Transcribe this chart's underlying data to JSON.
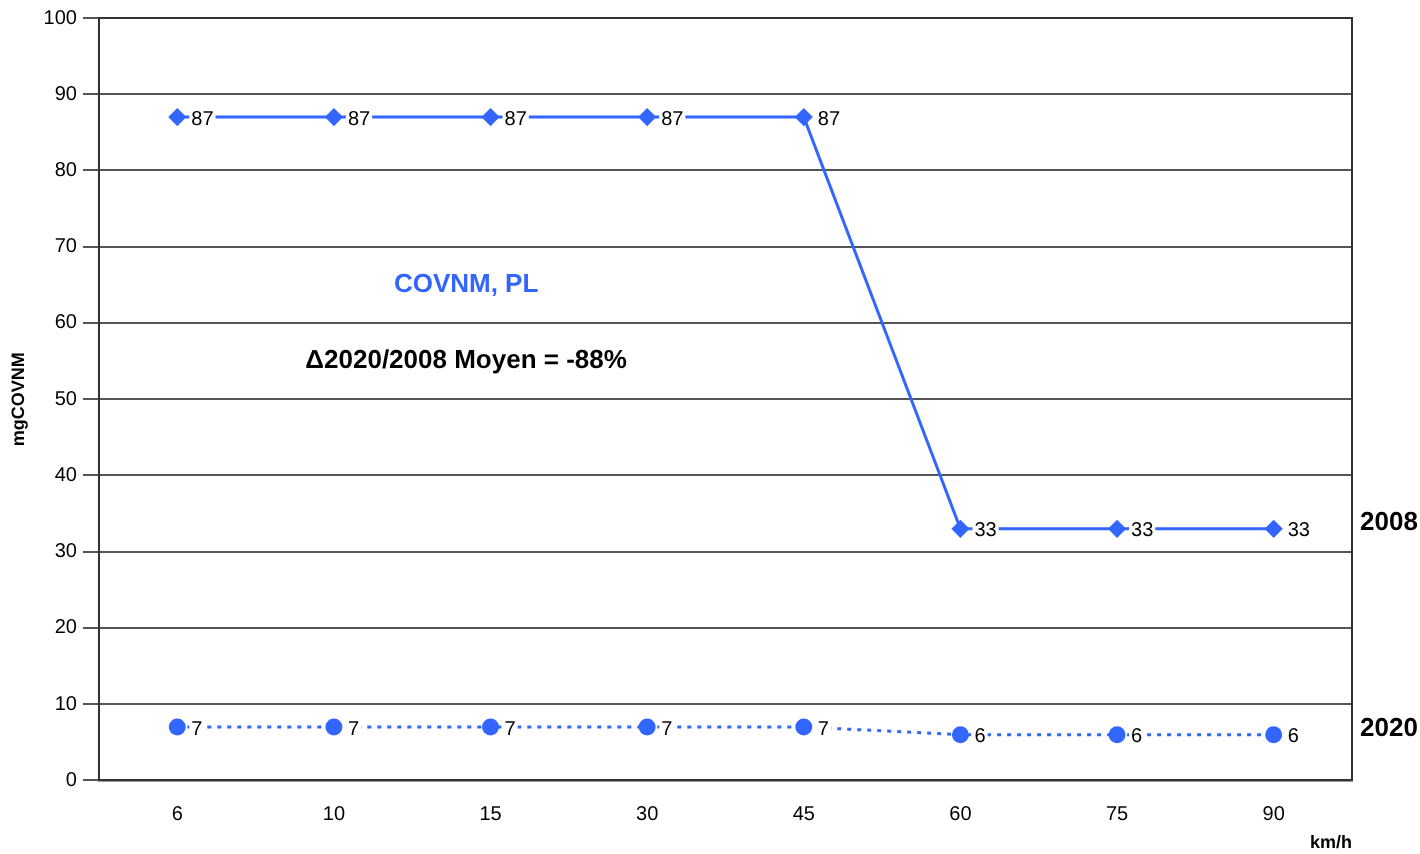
{
  "chart_data": {
    "type": "line",
    "title": "COVNM, PL",
    "xlabel": "km/h",
    "ylabel": "mgCOVNM",
    "annotations": [
      "Δ2020/2008 Moyen = -88%"
    ],
    "categories": [
      "6",
      "10",
      "15",
      "30",
      "45",
      "60",
      "75",
      "90"
    ],
    "series": [
      {
        "name": "2008",
        "color": "#3366ff",
        "values": [
          87,
          87,
          87,
          87,
          87,
          33,
          33,
          33
        ],
        "marker": "diamond",
        "line_style": "solid"
      },
      {
        "name": "2020",
        "color": "#3366ff",
        "values": [
          7,
          7,
          7,
          7,
          7,
          6,
          6,
          6
        ],
        "marker": "circle",
        "line_style": "dotted"
      }
    ],
    "ylim": [
      0,
      100
    ],
    "yticks": [
      0,
      10,
      20,
      30,
      40,
      50,
      60,
      70,
      80,
      90,
      100
    ],
    "grid": "y",
    "data_labels": true,
    "legend": false
  }
}
